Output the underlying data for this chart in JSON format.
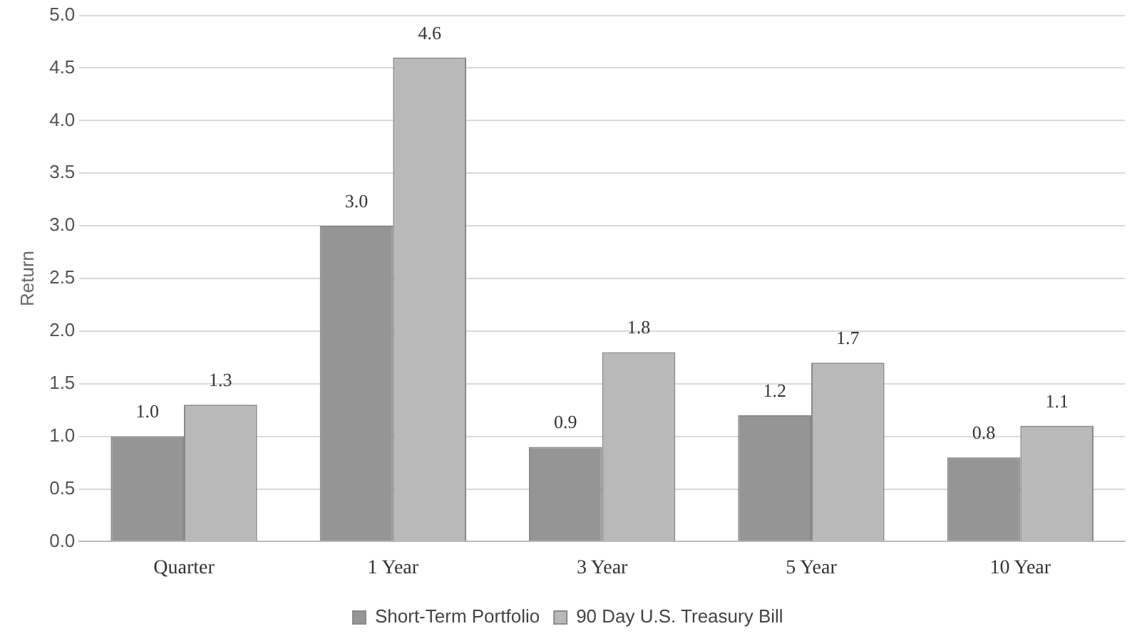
{
  "chart_data": {
    "type": "bar",
    "ylabel": "Return",
    "categories": [
      "Quarter",
      "1 Year",
      "3 Year",
      "5 Year",
      "10 Year"
    ],
    "series": [
      {
        "name": "Short-Term Portfolio",
        "color": "#959595",
        "values": [
          1.0,
          3.0,
          0.9,
          1.2,
          0.8
        ],
        "value_labels": [
          "1.0",
          "3.0",
          "0.9",
          "1.2",
          "0.8"
        ]
      },
      {
        "name": "90 Day U.S. Treasury Bill",
        "color": "#b9b9b9",
        "values": [
          1.3,
          4.6,
          1.8,
          1.7,
          1.1
        ],
        "value_labels": [
          "1.3",
          "4.6",
          "1.8",
          "1.7",
          "1.1"
        ]
      }
    ],
    "ylim": [
      0,
      5
    ],
    "yticks": [
      {
        "value": 0,
        "label": "0.0"
      },
      {
        "value": 0.5,
        "label": "0.5"
      },
      {
        "value": 1,
        "label": "1.0"
      },
      {
        "value": 1.5,
        "label": "1.5"
      },
      {
        "value": 2,
        "label": "2.0"
      },
      {
        "value": 2.5,
        "label": "2.5"
      },
      {
        "value": 3,
        "label": "3.0"
      },
      {
        "value": 3.5,
        "label": "3.5"
      },
      {
        "value": 4,
        "label": "4.0"
      },
      {
        "value": 4.5,
        "label": "4.5"
      },
      {
        "value": 5,
        "label": "5.0"
      }
    ],
    "grid": "y",
    "legend": "bottom"
  }
}
